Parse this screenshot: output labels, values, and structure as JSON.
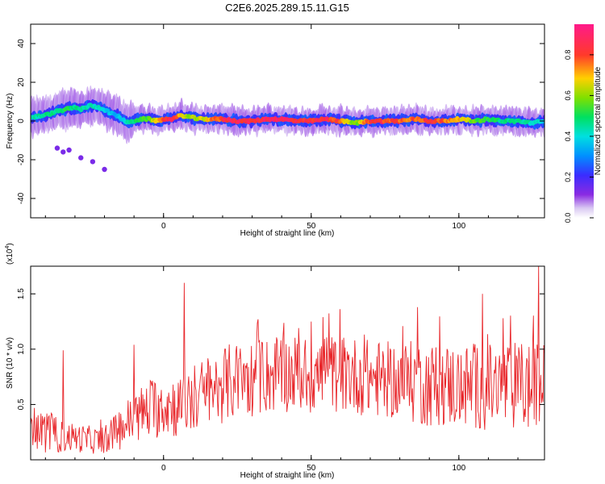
{
  "title": "C2E6.2025.289.15.11.G15",
  "colors": {
    "snr_line": "#e8262a",
    "background": "#ffffff"
  },
  "chart_data": [
    {
      "type": "heatmap",
      "xlabel": "Height of straight line (km)",
      "ylabel": "Frequency (Hz)",
      "xlim": [
        -45,
        129
      ],
      "ylim": [
        -50,
        50
      ],
      "xticks": [
        0,
        50,
        100
      ],
      "yticks": [
        40,
        20,
        0,
        -20,
        -40
      ],
      "colorbar": {
        "label": "Normalized spectral amplitude",
        "range": [
          0.0,
          0.95
        ],
        "ticks": [
          "0.0",
          "0.2",
          "0.4",
          "0.6",
          "0.8"
        ],
        "tick_values": [
          0.0,
          0.2,
          0.4,
          0.6,
          0.8
        ],
        "colormap": "rainbow"
      },
      "ridge": {
        "x": [
          -44,
          -40,
          -36,
          -33,
          -30,
          -28,
          -25,
          -22,
          -20,
          -18,
          -16,
          -14,
          -12,
          -10,
          -8,
          -5,
          -2,
          0,
          3,
          6,
          9,
          12,
          15,
          20,
          25,
          30,
          35,
          40,
          45,
          50,
          55,
          60,
          65,
          70,
          75,
          80,
          85,
          90,
          95,
          100,
          105,
          110,
          115,
          120,
          125,
          129
        ],
        "freq": [
          2,
          3,
          5,
          6,
          7,
          6,
          8,
          7,
          6,
          4,
          3,
          1,
          -1,
          0,
          1,
          1,
          0,
          1,
          1,
          3,
          2,
          1,
          1,
          1,
          0,
          0,
          1,
          1,
          0,
          0,
          1,
          0,
          -1,
          0,
          0,
          0,
          1,
          0,
          0,
          1,
          0,
          1,
          0,
          0,
          -1,
          0
        ],
        "amplitude": [
          0.45,
          0.5,
          0.5,
          0.55,
          0.5,
          0.5,
          0.45,
          0.45,
          0.4,
          0.4,
          0.35,
          0.4,
          0.45,
          0.5,
          0.55,
          0.6,
          0.75,
          0.95,
          0.9,
          0.75,
          0.65,
          0.7,
          0.75,
          0.9,
          0.95,
          0.9,
          0.95,
          0.95,
          0.95,
          0.9,
          0.95,
          0.85,
          0.6,
          0.9,
          0.9,
          0.85,
          0.85,
          0.9,
          0.85,
          0.8,
          0.6,
          0.55,
          0.5,
          0.5,
          0.45,
          0.4
        ]
      },
      "scatter_blobs": [
        {
          "x": -36,
          "freq": -14
        },
        {
          "x": -34,
          "freq": -16
        },
        {
          "x": -32,
          "freq": -15
        },
        {
          "x": -28,
          "freq": -19
        },
        {
          "x": -24,
          "freq": -21
        },
        {
          "x": -20,
          "freq": -25
        }
      ]
    },
    {
      "type": "line",
      "xlabel": "Height of straight line (km)",
      "ylabel": "SNR (10 * v/v)",
      "y_multiplier": "(x10",
      "y_multiplier_exp": "4",
      "y_multiplier_close": ")",
      "xlim": [
        -45,
        129
      ],
      "ylim": [
        0,
        1.75
      ],
      "xticks": [
        0,
        50,
        100
      ],
      "yticks": [
        0.5,
        1.0,
        1.5
      ],
      "ytick_labels": [
        "0.5",
        "1.0",
        "1.5"
      ],
      "spikes": [
        {
          "x": -34,
          "y": 0.99
        },
        {
          "x": -10,
          "y": 1.04
        },
        {
          "x": 7,
          "y": 1.6
        },
        {
          "x": 32,
          "y": 1.27
        },
        {
          "x": 50,
          "y": 1.25
        },
        {
          "x": 54,
          "y": 1.29
        },
        {
          "x": 86,
          "y": 1.38
        },
        {
          "x": 108,
          "y": 1.5
        },
        {
          "x": 115,
          "y": 1.28
        },
        {
          "x": 127,
          "y": 1.75
        }
      ],
      "series": [
        {
          "x": [
            -45,
            -40,
            -35,
            -30,
            -25,
            -20,
            -15,
            -10,
            -5,
            0,
            5,
            10,
            15,
            20,
            25,
            30,
            35,
            40,
            45,
            50,
            55,
            60,
            65,
            70,
            75,
            80,
            85,
            90,
            95,
            100,
            105,
            110,
            115,
            120,
            125,
            129
          ],
          "y": [
            0.3,
            0.25,
            0.22,
            0.2,
            0.18,
            0.17,
            0.28,
            0.38,
            0.45,
            0.5,
            0.48,
            0.55,
            0.62,
            0.68,
            0.72,
            0.74,
            0.76,
            0.78,
            0.78,
            0.75,
            0.78,
            0.78,
            0.76,
            0.74,
            0.72,
            0.72,
            0.7,
            0.68,
            0.68,
            0.66,
            0.66,
            0.65,
            0.66,
            0.66,
            0.66,
            0.66
          ],
          "spread": [
            0.12,
            0.12,
            0.1,
            0.08,
            0.08,
            0.07,
            0.12,
            0.15,
            0.18,
            0.18,
            0.18,
            0.2,
            0.2,
            0.22,
            0.22,
            0.22,
            0.22,
            0.22,
            0.22,
            0.22,
            0.22,
            0.22,
            0.22,
            0.22,
            0.22,
            0.22,
            0.24,
            0.24,
            0.24,
            0.24,
            0.25,
            0.25,
            0.25,
            0.26,
            0.26,
            0.26
          ]
        }
      ]
    }
  ]
}
